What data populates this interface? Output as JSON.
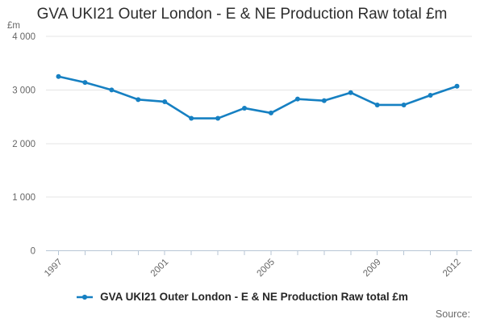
{
  "title": "GVA UKI21 Outer London - E & NE Production Raw total £m",
  "legend": {
    "label": "GVA UKI21 Outer London - E & NE Production Raw total £m"
  },
  "source": {
    "label": "Source:"
  },
  "chart_data": {
    "type": "line",
    "title": "GVA UKI21 Outer London - E & NE Production Raw total £m",
    "ylabel": "£m",
    "xlabel": "",
    "x": [
      1997,
      1998,
      1999,
      2000,
      2001,
      2002,
      2003,
      2004,
      2005,
      2006,
      2007,
      2008,
      2009,
      2010,
      2011,
      2012
    ],
    "series": [
      {
        "name": "GVA UKI21 Outer London - E & NE Production Raw total £m",
        "values": [
          3250,
          3140,
          3000,
          2820,
          2780,
          2470,
          2470,
          2660,
          2570,
          2830,
          2800,
          2950,
          2720,
          2720,
          2900,
          3070
        ]
      }
    ],
    "ylim": [
      0,
      4000
    ],
    "y_ticks": [
      {
        "value": 0,
        "label": "0"
      },
      {
        "value": 1000,
        "label": "1 000"
      },
      {
        "value": 2000,
        "label": "2 000"
      },
      {
        "value": 3000,
        "label": "3 000"
      },
      {
        "value": 4000,
        "label": "4 000"
      }
    ],
    "x_labeled_ticks": [
      {
        "value": 1997,
        "label": "1997"
      },
      {
        "value": 2001,
        "label": "2001"
      },
      {
        "value": 2005,
        "label": "2005"
      },
      {
        "value": 2009,
        "label": "2009"
      },
      {
        "value": 2012,
        "label": "2012"
      }
    ],
    "grid": true,
    "legend_position": "bottom",
    "line_color": "#1680c2",
    "marker": "circle"
  }
}
